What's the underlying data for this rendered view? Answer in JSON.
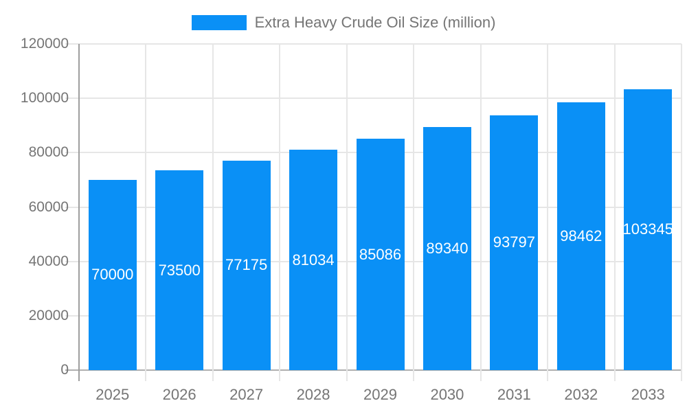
{
  "legend": {
    "label": "Extra Heavy Crude Oil Size (million)"
  },
  "colors": {
    "bar": "#0a90f6",
    "grid": "#e6e6e6",
    "axis": "#9e9e9e",
    "baseline": "#b0b0b0",
    "tick_text": "#757575",
    "value_label": "#ffffff"
  },
  "chart_data": {
    "type": "bar",
    "title": "",
    "legend": "Extra Heavy Crude Oil Size (million)",
    "legend_position": "top",
    "categories": [
      "2025",
      "2026",
      "2027",
      "2028",
      "2029",
      "2030",
      "2031",
      "2032",
      "2033"
    ],
    "values": [
      70000,
      73500,
      77175,
      81034,
      85086,
      89340,
      93797,
      98462,
      103345
    ],
    "value_labels": [
      "70000",
      "73500",
      "77175",
      "81034",
      "85086",
      "89340",
      "93797",
      "98462",
      "103345"
    ],
    "value_label_style": "white, centered inside bar",
    "xlabel": "",
    "ylabel": "",
    "ylim": [
      0,
      120000
    ],
    "yticks": [
      0,
      20000,
      40000,
      60000,
      80000,
      100000,
      120000
    ],
    "grid": true
  }
}
